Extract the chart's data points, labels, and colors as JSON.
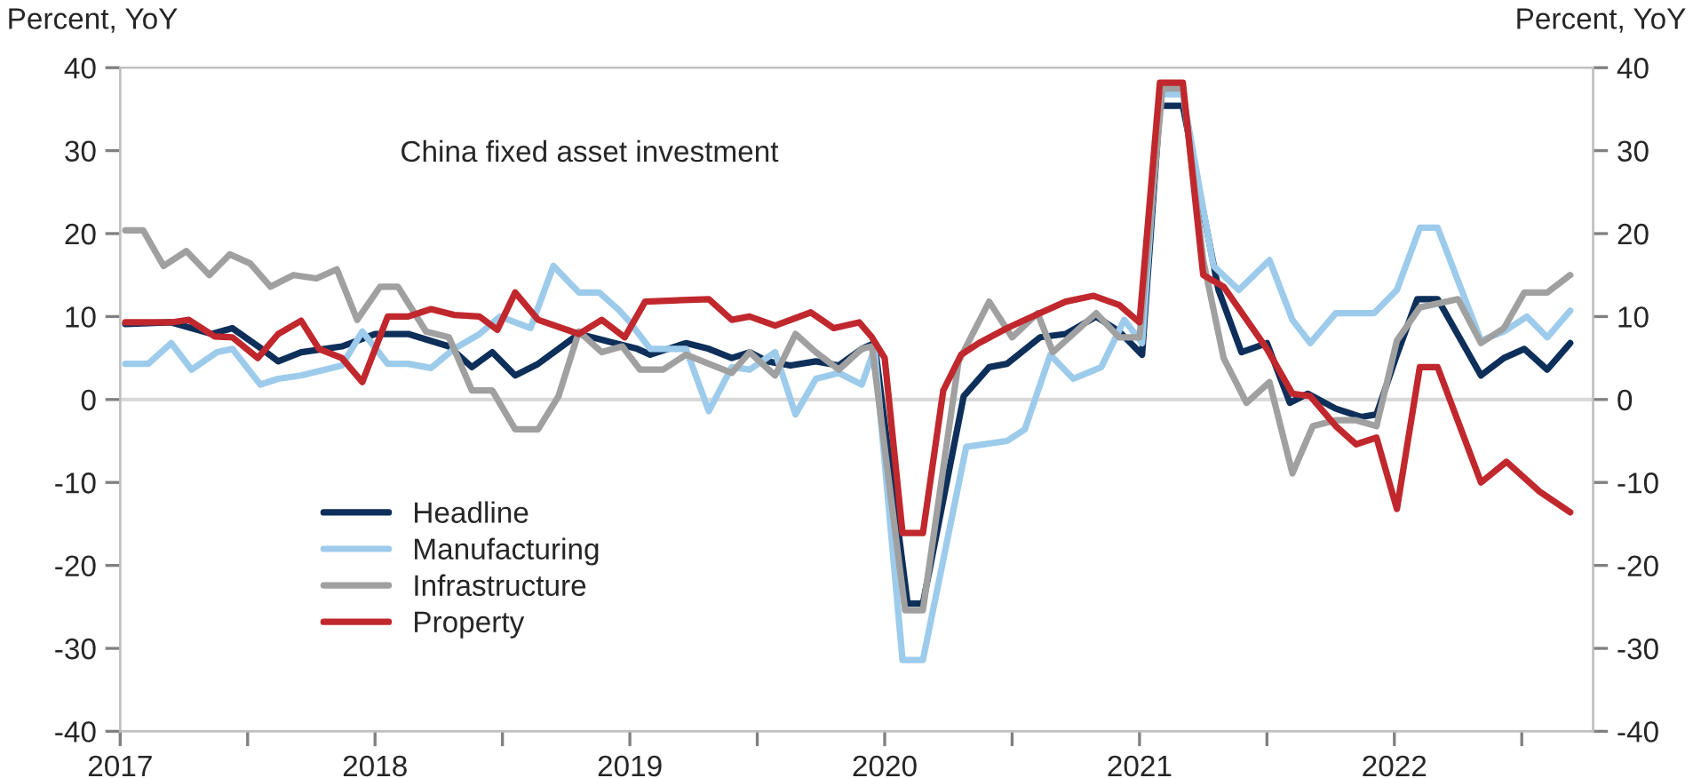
{
  "chart_data": {
    "type": "line",
    "title": "China fixed asset investment",
    "ylabel": "Percent, YoY",
    "y2label": "Percent, YoY",
    "xlim": [
      2017,
      2022.78
    ],
    "xticks": [
      2017,
      {
        "value": 2017.5,
        "label": null
      },
      2018,
      {
        "value": 2018.5,
        "label": null
      },
      2019,
      {
        "value": 2019.5,
        "label": null
      },
      2020,
      {
        "value": 2020.5,
        "label": null
      },
      2021,
      {
        "value": 2021.5,
        "label": null
      },
      2022,
      {
        "value": 2022.5,
        "label": null
      }
    ],
    "ylim": [
      -40,
      40
    ],
    "yticks": [
      -40,
      -30,
      -20,
      -10,
      0,
      10,
      20,
      30,
      40
    ],
    "y2lim": [
      -40,
      40
    ],
    "y2ticks": [
      -40,
      -30,
      -20,
      -10,
      0,
      10,
      20,
      30,
      40
    ],
    "grid": false,
    "legend": "bottom left",
    "line_style": "solid",
    "marker": "none",
    "ref_lines": [
      {
        "axis": "y",
        "value": 0,
        "color": "#d9d9d9"
      }
    ],
    "series": [
      {
        "name": "Headline",
        "color": "#0d2f5a",
        "x": [
          2017.02,
          2017.2,
          2017.28,
          2017.36,
          2017.44,
          2017.56,
          2017.62,
          2017.71,
          2017.87,
          2018.0,
          2018.13,
          2018.29,
          2018.38,
          2018.46,
          2018.55,
          2018.64,
          2018.8,
          2018.94,
          2019.03,
          2019.08,
          2019.22,
          2019.31,
          2019.4,
          2019.47,
          2019.54,
          2019.63,
          2019.73,
          2019.82,
          2019.91,
          2019.96,
          2020.09,
          2020.15,
          2020.31,
          2020.41,
          2020.48,
          2020.61,
          2020.71,
          2020.83,
          2020.92,
          2021.01,
          2021.08,
          2021.17,
          2021.31,
          2021.4,
          2021.5,
          2021.59,
          2021.66,
          2021.77,
          2021.87,
          2021.93,
          2022.01,
          2022.09,
          2022.17,
          2022.34,
          2022.43,
          2022.51,
          2022.6,
          2022.69
        ],
        "values": [
          9.1,
          9.3,
          8.6,
          7.9,
          8.6,
          6,
          4.6,
          5.7,
          6.4,
          7.9,
          7.9,
          6.4,
          3.9,
          5.7,
          2.9,
          4.3,
          7.9,
          6.8,
          6.1,
          5.4,
          6.8,
          6.1,
          5,
          5.7,
          4.6,
          4.1,
          4.6,
          4.1,
          6.1,
          6.8,
          -24.6,
          -24.6,
          0.4,
          3.9,
          4.3,
          7.5,
          7.9,
          10,
          8.2,
          5.4,
          35.4,
          35.4,
          13.2,
          5.7,
          6.8,
          -0.4,
          0.7,
          -1.1,
          -2.1,
          -1.8,
          5.4,
          12.1,
          12.1,
          2.9,
          5,
          6.1,
          3.6,
          6.8
        ]
      },
      {
        "name": "Manufacturing",
        "color": "#9dcbeb",
        "x": [
          2017.02,
          2017.11,
          2017.2,
          2017.28,
          2017.38,
          2017.44,
          2017.55,
          2017.62,
          2017.71,
          2017.87,
          2017.95,
          2018.05,
          2018.13,
          2018.22,
          2018.31,
          2018.41,
          2018.49,
          2018.61,
          2018.7,
          2018.8,
          2018.88,
          2018.96,
          2019.0,
          2019.08,
          2019.22,
          2019.31,
          2019.4,
          2019.47,
          2019.57,
          2019.65,
          2019.73,
          2019.82,
          2019.91,
          2019.96,
          2020.07,
          2020.15,
          2020.32,
          2020.48,
          2020.55,
          2020.65,
          2020.74,
          2020.85,
          2020.94,
          2021.01,
          2021.08,
          2021.17,
          2021.29,
          2021.39,
          2021.51,
          2021.6,
          2021.67,
          2021.77,
          2021.92,
          2022.01,
          2022.1,
          2022.17,
          2022.25,
          2022.34,
          2022.43,
          2022.52,
          2022.6,
          2022.69
        ],
        "values": [
          4.3,
          4.3,
          6.8,
          3.6,
          5.7,
          6.1,
          1.8,
          2.5,
          2.9,
          4.1,
          8.2,
          4.3,
          4.3,
          3.8,
          6.1,
          7.9,
          10,
          8.6,
          16.1,
          12.9,
          12.9,
          10.7,
          9.3,
          6.1,
          6.1,
          -1.4,
          3.9,
          3.6,
          5.7,
          -1.8,
          2.5,
          3.2,
          1.8,
          6.1,
          -31.4,
          -31.4,
          -5.7,
          -5,
          -3.6,
          5.4,
          2.5,
          3.9,
          9.6,
          6.8,
          36.8,
          36.8,
          16.1,
          13.2,
          16.8,
          9.6,
          6.8,
          10.4,
          10.4,
          13.2,
          20.7,
          20.7,
          14.3,
          7.1,
          8.2,
          10,
          7.5,
          10.7
        ]
      },
      {
        "name": "Infrastructure",
        "color": "#a0a0a0",
        "x": [
          2017.02,
          2017.09,
          2017.17,
          2017.26,
          2017.35,
          2017.43,
          2017.51,
          2017.59,
          2017.68,
          2017.77,
          2017.85,
          2017.93,
          2018.02,
          2018.09,
          2018.2,
          2018.29,
          2018.38,
          2018.46,
          2018.55,
          2018.64,
          2018.72,
          2018.8,
          2018.89,
          2018.97,
          2019.04,
          2019.13,
          2019.22,
          2019.4,
          2019.47,
          2019.57,
          2019.65,
          2019.73,
          2019.82,
          2019.91,
          2019.95,
          2020.08,
          2020.15,
          2020.29,
          2020.41,
          2020.5,
          2020.6,
          2020.66,
          2020.83,
          2020.92,
          2021.0,
          2021.09,
          2021.17,
          2021.25,
          2021.33,
          2021.42,
          2021.51,
          2021.6,
          2021.68,
          2021.77,
          2021.85,
          2021.93,
          2022.01,
          2022.1,
          2022.25,
          2022.34,
          2022.43,
          2022.51,
          2022.6,
          2022.69
        ],
        "values": [
          20.4,
          20.4,
          16.1,
          17.9,
          15,
          17.5,
          16.4,
          13.6,
          15,
          14.6,
          15.7,
          9.6,
          13.6,
          13.6,
          8.2,
          7.5,
          1.1,
          1.1,
          -3.6,
          -3.6,
          0.4,
          8.2,
          5.7,
          6.4,
          3.6,
          3.6,
          5.4,
          3.2,
          5.7,
          2.9,
          7.9,
          5.7,
          3.6,
          6.1,
          6.4,
          -25.4,
          -25.4,
          4.6,
          11.8,
          7.5,
          10.4,
          5.7,
          10.4,
          7.5,
          7.5,
          37.5,
          37.5,
          16.8,
          5,
          -0.4,
          2.1,
          -8.9,
          -3.2,
          -2.5,
          -2.5,
          -3.2,
          7.1,
          11.1,
          12.1,
          6.8,
          8.6,
          12.9,
          12.9,
          15
        ]
      },
      {
        "name": "Property",
        "color": "#c0282d",
        "x": [
          2017.02,
          2017.2,
          2017.27,
          2017.37,
          2017.44,
          2017.54,
          2017.62,
          2017.71,
          2017.78,
          2017.87,
          2017.95,
          2018.05,
          2018.13,
          2018.22,
          2018.31,
          2018.41,
          2018.48,
          2018.55,
          2018.64,
          2018.8,
          2018.89,
          2018.98,
          2019.06,
          2019.31,
          2019.4,
          2019.47,
          2019.57,
          2019.71,
          2019.8,
          2019.9,
          2019.95,
          2020.0,
          2020.07,
          2020.15,
          2020.23,
          2020.3,
          2020.37,
          2020.48,
          2020.55,
          2020.71,
          2020.82,
          2020.92,
          2021.0,
          2021.08,
          2021.17,
          2021.25,
          2021.33,
          2021.5,
          2021.6,
          2021.67,
          2021.77,
          2021.85,
          2021.93,
          2022.01,
          2022.1,
          2022.17,
          2022.34,
          2022.44,
          2022.57,
          2022.69
        ],
        "values": [
          9.3,
          9.3,
          9.6,
          7.6,
          7.5,
          5,
          7.9,
          9.5,
          6.1,
          5,
          2.1,
          10,
          10,
          10.9,
          10.2,
          10,
          8.4,
          12.9,
          9.6,
          7.9,
          9.6,
          7.5,
          11.8,
          12.1,
          9.6,
          10,
          8.9,
          10.5,
          8.6,
          9.3,
          7.5,
          5,
          -16.1,
          -16.1,
          1.1,
          5.4,
          6.8,
          8.6,
          9.6,
          11.8,
          12.5,
          11.4,
          9.3,
          38.2,
          38.2,
          15,
          13.6,
          6.1,
          0.7,
          0.4,
          -3.2,
          -5.4,
          -4.6,
          -13.2,
          3.9,
          3.9,
          -10,
          -7.5,
          -11.1,
          -13.6
        ]
      }
    ]
  }
}
